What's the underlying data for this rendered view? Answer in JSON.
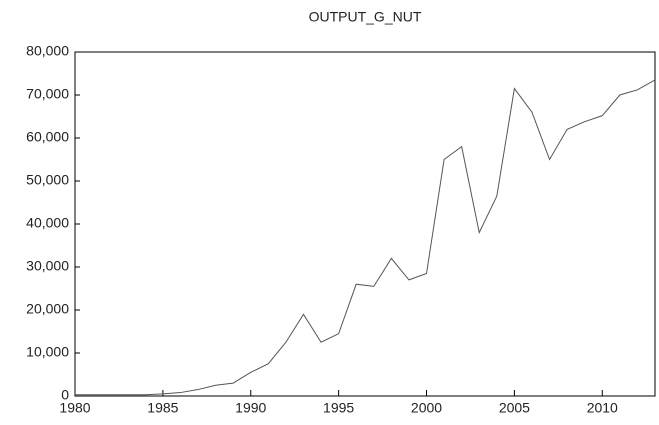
{
  "chart_data": {
    "type": "line",
    "title": "OUTPUT_G_NUT",
    "x": [
      1980,
      1981,
      1982,
      1983,
      1984,
      1985,
      1986,
      1987,
      1988,
      1989,
      1990,
      1991,
      1992,
      1993,
      1994,
      1995,
      1996,
      1997,
      1998,
      1999,
      2000,
      2001,
      2002,
      2003,
      2004,
      2005,
      2006,
      2007,
      2008,
      2009,
      2010,
      2011,
      2012,
      2013
    ],
    "series": [
      {
        "name": "OUTPUT_G_NUT",
        "color": "#555555",
        "values": [
          300,
          300,
          300,
          300,
          300,
          500,
          800,
          1500,
          2500,
          3000,
          5500,
          7500,
          12500,
          19000,
          12500,
          14500,
          26000,
          25500,
          32000,
          27000,
          28500,
          55000,
          58000,
          38000,
          46500,
          71500,
          66000,
          55000,
          62000,
          63800,
          65200,
          70000,
          71200,
          73500
        ]
      }
    ],
    "xlim": [
      1980,
      2013
    ],
    "xticks": [
      1980,
      1985,
      1990,
      1995,
      2000,
      2005,
      2010
    ],
    "ylim": [
      0,
      80000
    ],
    "yticks": [
      0,
      {
        "value": 10000,
        "label": "10,000"
      },
      {
        "value": 20000,
        "label": "20,000"
      },
      {
        "value": 30000,
        "label": "30,000"
      },
      {
        "value": 40000,
        "label": "40,000"
      },
      {
        "value": 50000,
        "label": "50,000"
      },
      {
        "value": 60000,
        "label": "60,000"
      },
      {
        "value": 70000,
        "label": "70,000"
      },
      {
        "value": 80000,
        "label": "80,000"
      }
    ],
    "grid": false
  }
}
